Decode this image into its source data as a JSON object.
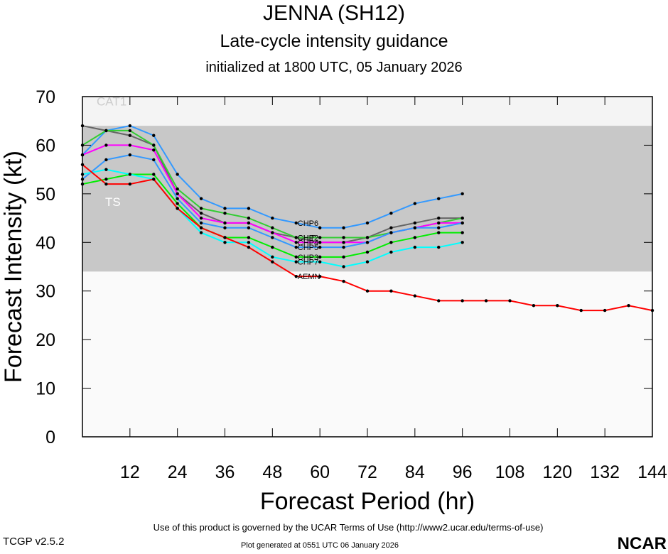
{
  "title": "JENNA (SH12)",
  "subtitle": "Late-cycle intensity guidance",
  "init": "initialized at 1800 UTC, 05 January 2026",
  "footer": {
    "terms": "Use of this product is governed by the UCAR Terms of Use (http://www2.ucar.edu/terms-of-use)",
    "version": "TCGP v2.5.2",
    "generated": "Plot generated at 0551 UTC   06 January 2026",
    "logo": "NCAR"
  },
  "chart_data": {
    "type": "line",
    "xlabel": "Forecast Period (hr)",
    "ylabel": "Forecast Intensity (kt)",
    "xlim": [
      0,
      144
    ],
    "ylim": [
      0,
      70
    ],
    "xticks": [
      12,
      24,
      36,
      48,
      60,
      72,
      84,
      96,
      108,
      120,
      132,
      144
    ],
    "yticks": [
      0,
      10,
      20,
      30,
      40,
      50,
      60,
      70
    ],
    "bands": [
      {
        "label": "TS",
        "from": 34,
        "to": 64,
        "color": "#c8c8c8"
      },
      {
        "label": "CAT1",
        "from": 64,
        "to": 70,
        "color": "#f4f4f4"
      }
    ],
    "series": [
      {
        "name": "CHP6",
        "color": "#3399ff",
        "x": [
          0,
          6,
          12,
          18,
          24,
          30,
          36,
          42,
          48,
          54,
          60,
          66,
          72,
          78,
          84,
          90,
          96
        ],
        "values": [
          58,
          63,
          64,
          62,
          54,
          49,
          47,
          47,
          45,
          44,
          43,
          43,
          44,
          46,
          48,
          49,
          50
        ]
      },
      {
        "name": "CHIP",
        "color": "#666666",
        "x": [
          0,
          6,
          12,
          18,
          24,
          30,
          36,
          42,
          48,
          54,
          60,
          66,
          72,
          78,
          84,
          90,
          96
        ],
        "values": [
          64,
          63,
          62,
          60,
          50,
          46,
          44,
          44,
          42,
          41,
          40,
          40,
          41,
          43,
          44,
          45,
          45
        ]
      },
      {
        "name": "CHP2",
        "color": "#33cc33",
        "x": [
          0,
          6,
          12,
          18,
          24,
          30,
          36,
          42,
          48,
          54,
          60,
          66,
          72,
          78,
          84,
          90,
          96
        ],
        "values": [
          60,
          63,
          63,
          60,
          51,
          47,
          46,
          45,
          43,
          41,
          41,
          41,
          41,
          42,
          43,
          44,
          45
        ]
      },
      {
        "name": "CHP4",
        "color": "#ff00ff",
        "x": [
          0,
          6,
          12,
          18,
          24,
          30,
          36,
          42,
          48,
          54,
          60,
          66,
          72,
          78,
          84,
          90,
          96
        ],
        "values": [
          58,
          60,
          60,
          59,
          50,
          45,
          44,
          44,
          42,
          40,
          40,
          40,
          40,
          42,
          43,
          44,
          44
        ]
      },
      {
        "name": "CHP5",
        "color": "#3399ff",
        "x": [
          0,
          6,
          12,
          18,
          24,
          30,
          36,
          42,
          48,
          54,
          60,
          66,
          72,
          78,
          84,
          90,
          96
        ],
        "values": [
          53,
          57,
          58,
          57,
          49,
          44,
          43,
          43,
          41,
          39,
          39,
          39,
          40,
          42,
          43,
          43,
          44
        ]
      },
      {
        "name": "CHP3",
        "color": "#00ee00",
        "x": [
          0,
          6,
          12,
          18,
          24,
          30,
          36,
          42,
          48,
          54,
          60,
          66,
          72,
          78,
          84,
          90,
          96
        ],
        "values": [
          52,
          53,
          54,
          54,
          48,
          43,
          41,
          41,
          39,
          37,
          37,
          37,
          38,
          40,
          41,
          42,
          42
        ]
      },
      {
        "name": "CHP7",
        "color": "#00ffff",
        "x": [
          0,
          6,
          12,
          18,
          24,
          30,
          36,
          42,
          48,
          54,
          60,
          66,
          72,
          78,
          84,
          90,
          96
        ],
        "values": [
          54,
          55,
          54,
          53,
          47,
          42,
          40,
          40,
          37,
          36,
          36,
          35,
          36,
          38,
          39,
          39,
          40
        ]
      },
      {
        "name": "AEMN",
        "color": "#ff0000",
        "x": [
          0,
          6,
          12,
          18,
          24,
          30,
          36,
          42,
          48,
          54,
          60,
          66,
          72,
          78,
          84,
          90,
          96,
          102,
          108,
          114,
          120,
          126,
          132,
          138,
          144
        ],
        "values": [
          56,
          52,
          52,
          53,
          47,
          43,
          41,
          39,
          36,
          33,
          33,
          32,
          30,
          30,
          29,
          28,
          28,
          28,
          28,
          27,
          27,
          26,
          26,
          27,
          26
        ]
      }
    ]
  }
}
